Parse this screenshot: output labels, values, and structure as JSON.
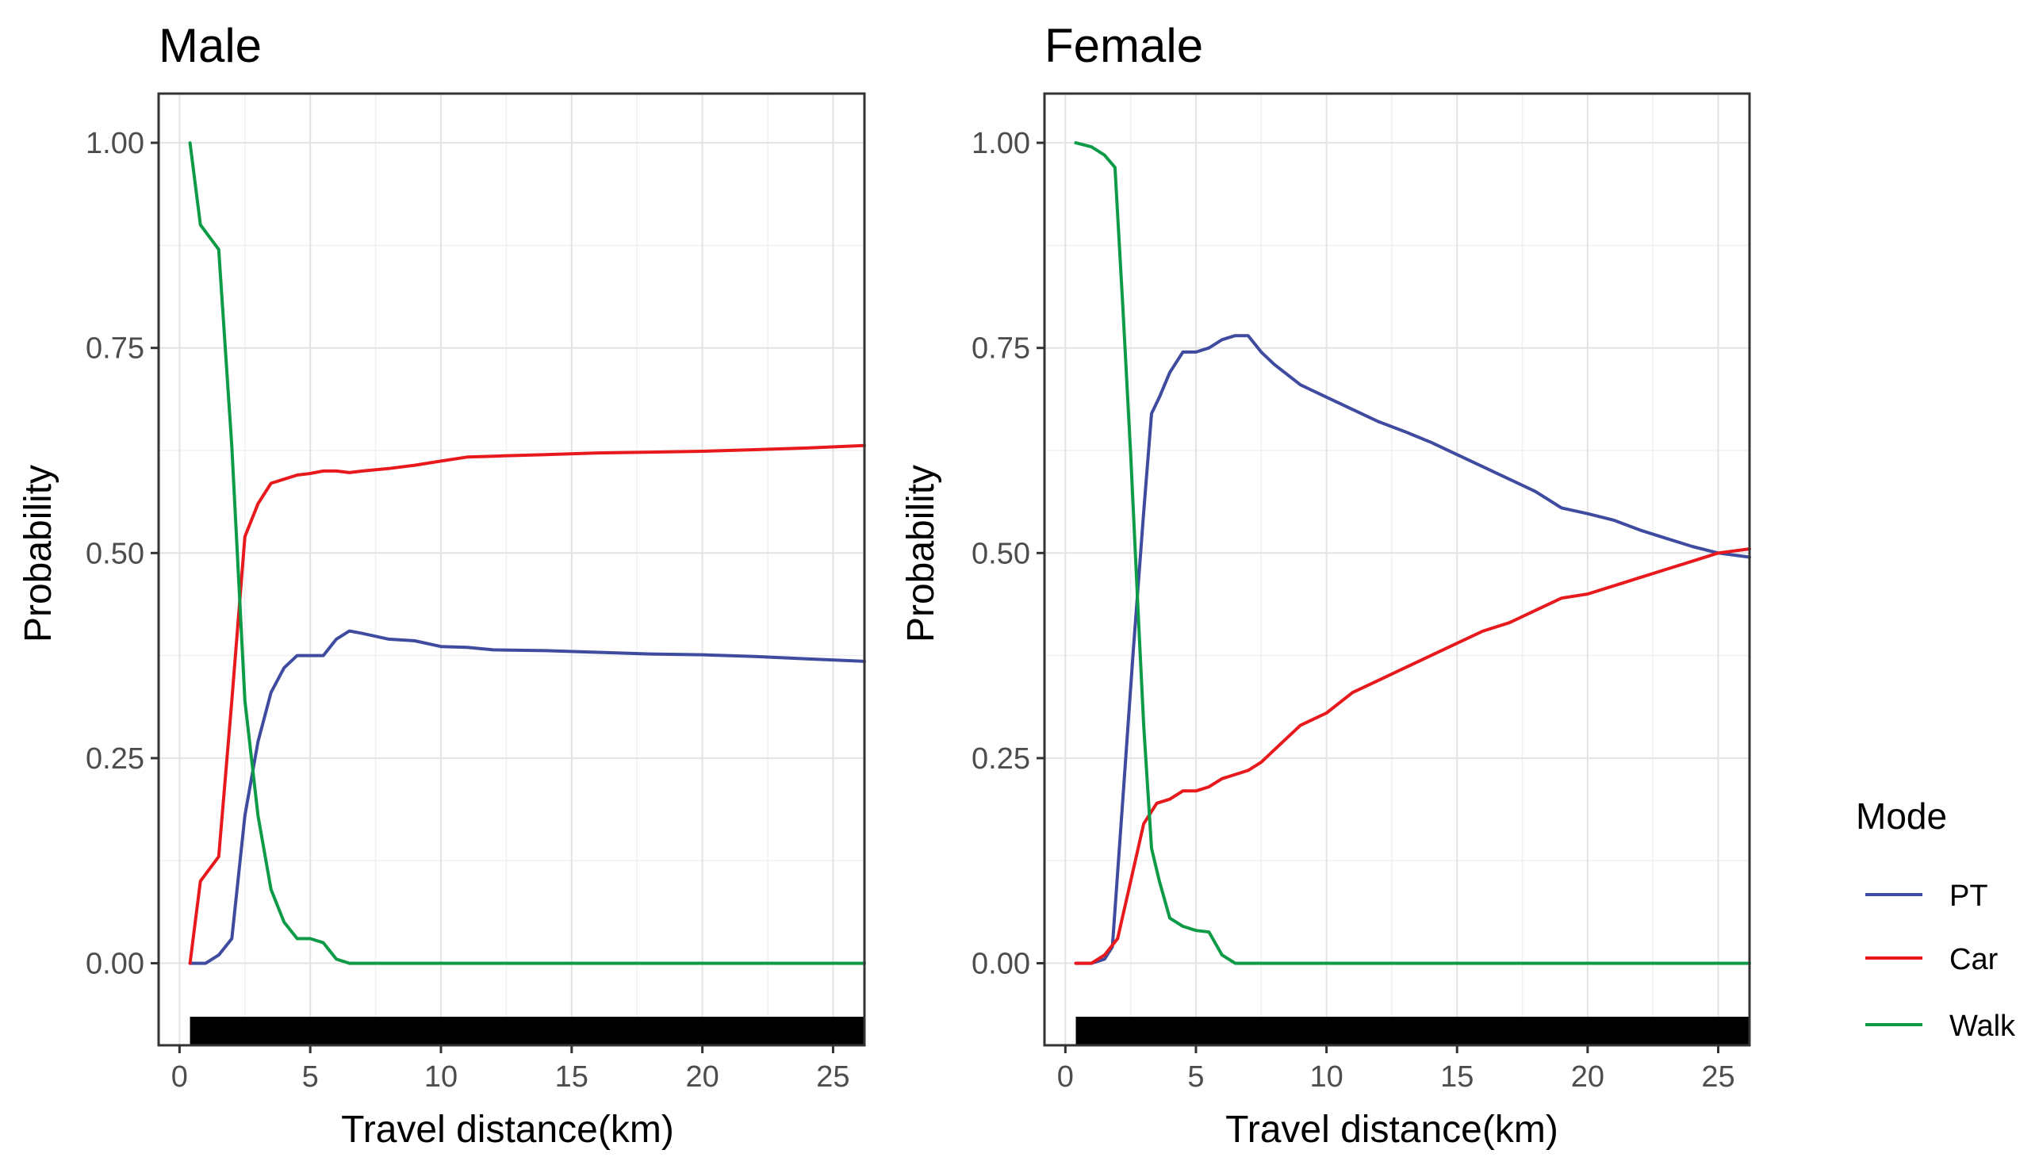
{
  "legend": {
    "title": "Mode",
    "items": [
      {
        "name": "PT",
        "color": "#3F4B9E"
      },
      {
        "name": "Car",
        "color": "#E8191C"
      },
      {
        "name": "Walk",
        "color": "#0E9B48"
      }
    ]
  },
  "chart_data": [
    {
      "type": "line",
      "title": "Male",
      "xlabel": "Travel distance(km)",
      "ylabel": "Probability",
      "xlim": [
        -0.8,
        26.2
      ],
      "ylim": [
        -0.1,
        1.06
      ],
      "x_ticks": [
        0,
        5,
        10,
        15,
        20,
        25
      ],
      "x_tick_labels": [
        "0",
        "5",
        "10",
        "15",
        "20",
        "25"
      ],
      "y_ticks": [
        0,
        0.25,
        0.5,
        0.75,
        1.0
      ],
      "y_tick_labels": [
        "0.00",
        "0.25",
        "0.50",
        "0.75",
        "1.00"
      ],
      "grid": true,
      "rug": {
        "from": 0.4,
        "to": 26.2
      },
      "series": [
        {
          "name": "PT",
          "color": "#3F4B9E",
          "x": [
            0.4,
            1.0,
            1.5,
            2.0,
            2.5,
            3.0,
            3.5,
            4.0,
            4.5,
            5.0,
            5.5,
            6.0,
            6.5,
            7.0,
            8.0,
            9.0,
            10.0,
            11.0,
            12.0,
            14.0,
            16.0,
            18.0,
            20.0,
            22.0,
            24.0,
            26.2
          ],
          "y": [
            0.0,
            0.0,
            0.01,
            0.03,
            0.18,
            0.27,
            0.33,
            0.36,
            0.375,
            0.375,
            0.375,
            0.395,
            0.405,
            0.402,
            0.395,
            0.393,
            0.386,
            0.385,
            0.382,
            0.381,
            0.379,
            0.377,
            0.376,
            0.374,
            0.371,
            0.368
          ]
        },
        {
          "name": "Car",
          "color": "#E8191C",
          "x": [
            0.4,
            0.8,
            1.5,
            2.0,
            2.5,
            3.0,
            3.5,
            4.0,
            4.5,
            5.0,
            5.5,
            6.0,
            6.5,
            7.0,
            8.0,
            9.0,
            10.0,
            11.0,
            12.0,
            14.0,
            16.0,
            18.0,
            20.0,
            22.0,
            24.0,
            26.2
          ],
          "y": [
            0.0,
            0.1,
            0.13,
            0.32,
            0.52,
            0.56,
            0.585,
            0.59,
            0.595,
            0.597,
            0.6,
            0.6,
            0.598,
            0.6,
            0.603,
            0.607,
            0.612,
            0.617,
            0.618,
            0.62,
            0.622,
            0.623,
            0.624,
            0.626,
            0.628,
            0.631
          ]
        },
        {
          "name": "Walk",
          "color": "#0E9B48",
          "x": [
            0.4,
            0.8,
            1.5,
            2.0,
            2.5,
            3.0,
            3.5,
            4.0,
            4.5,
            5.0,
            5.5,
            6.0,
            6.5,
            7.0,
            8.0,
            9.0,
            10.0,
            11.0,
            12.0,
            14.0,
            16.0,
            18.0,
            20.0,
            22.0,
            24.0,
            26.2
          ],
          "y": [
            1.0,
            0.9,
            0.87,
            0.63,
            0.32,
            0.18,
            0.09,
            0.05,
            0.03,
            0.03,
            0.025,
            0.005,
            0.0,
            0.0,
            0.0,
            0.0,
            0.0,
            0.0,
            0.0,
            0.0,
            0.0,
            0.0,
            0.0,
            0.0,
            0.0,
            0.0
          ]
        }
      ]
    },
    {
      "type": "line",
      "title": "Female",
      "xlabel": "Travel distance(km)",
      "ylabel": "Probability",
      "xlim": [
        -0.8,
        26.2
      ],
      "ylim": [
        -0.1,
        1.06
      ],
      "x_ticks": [
        0,
        5,
        10,
        15,
        20,
        25
      ],
      "x_tick_labels": [
        "0",
        "5",
        "10",
        "15",
        "20",
        "25"
      ],
      "y_ticks": [
        0,
        0.25,
        0.5,
        0.75,
        1.0
      ],
      "y_tick_labels": [
        "0.00",
        "0.25",
        "0.50",
        "0.75",
        "1.00"
      ],
      "grid": true,
      "rug": {
        "from": 0.4,
        "to": 26.2
      },
      "series": [
        {
          "name": "PT",
          "color": "#3F4B9E",
          "x": [
            0.4,
            1.0,
            1.5,
            1.8,
            2.2,
            2.6,
            3.0,
            3.3,
            3.6,
            4.0,
            4.5,
            5.0,
            5.5,
            6.0,
            6.5,
            7.0,
            7.5,
            8.0,
            9.0,
            10.0,
            11.0,
            12.0,
            13.0,
            14.0,
            15.0,
            16.0,
            17.0,
            18.0,
            19.0,
            20.0,
            21.0,
            22.0,
            23.0,
            24.0,
            25.0,
            26.2
          ],
          "y": [
            0.0,
            0.0,
            0.005,
            0.02,
            0.2,
            0.38,
            0.55,
            0.67,
            0.69,
            0.72,
            0.745,
            0.745,
            0.75,
            0.76,
            0.765,
            0.765,
            0.745,
            0.73,
            0.705,
            0.69,
            0.675,
            0.66,
            0.648,
            0.635,
            0.62,
            0.605,
            0.59,
            0.575,
            0.555,
            0.548,
            0.54,
            0.528,
            0.518,
            0.508,
            0.5,
            0.495
          ]
        },
        {
          "name": "Car",
          "color": "#E8191C",
          "x": [
            0.4,
            1.0,
            1.5,
            2.0,
            2.5,
            3.0,
            3.5,
            4.0,
            4.5,
            5.0,
            5.5,
            6.0,
            6.5,
            7.0,
            7.5,
            8.0,
            9.0,
            10.0,
            11.0,
            12.0,
            13.0,
            14.0,
            15.0,
            16.0,
            17.0,
            18.0,
            19.0,
            20.0,
            21.0,
            22.0,
            23.0,
            24.0,
            25.0,
            26.2
          ],
          "y": [
            0.0,
            0.0,
            0.01,
            0.03,
            0.1,
            0.17,
            0.195,
            0.2,
            0.21,
            0.21,
            0.215,
            0.225,
            0.23,
            0.235,
            0.245,
            0.26,
            0.29,
            0.305,
            0.33,
            0.345,
            0.36,
            0.375,
            0.39,
            0.405,
            0.415,
            0.43,
            0.445,
            0.45,
            0.46,
            0.47,
            0.48,
            0.49,
            0.5,
            0.505
          ]
        },
        {
          "name": "Walk",
          "color": "#0E9B48",
          "x": [
            0.4,
            1.0,
            1.5,
            1.9,
            2.2,
            2.5,
            2.8,
            3.0,
            3.3,
            3.6,
            4.0,
            4.5,
            5.0,
            5.5,
            6.0,
            6.5,
            7.0,
            8.0,
            9.0,
            10.0,
            11.0,
            12.0,
            14.0,
            16.0,
            18.0,
            20.0,
            22.0,
            24.0,
            26.2
          ],
          "y": [
            1.0,
            0.995,
            0.985,
            0.97,
            0.8,
            0.62,
            0.42,
            0.29,
            0.14,
            0.1,
            0.055,
            0.045,
            0.04,
            0.038,
            0.01,
            0.0,
            0.0,
            0.0,
            0.0,
            0.0,
            0.0,
            0.0,
            0.0,
            0.0,
            0.0,
            0.0,
            0.0,
            0.0,
            0.0
          ]
        }
      ]
    }
  ]
}
